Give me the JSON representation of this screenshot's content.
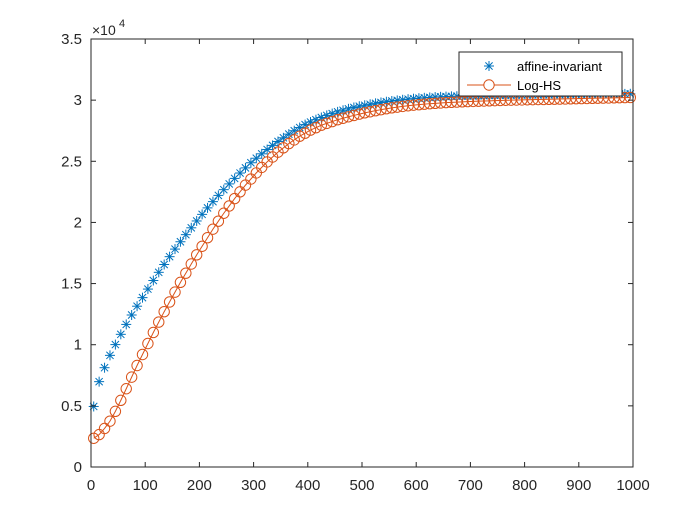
{
  "chart_data": {
    "type": "scatter",
    "title": "",
    "xlabel": "",
    "ylabel": "",
    "xlim": [
      0,
      1000
    ],
    "ylim": [
      0,
      35000
    ],
    "x_ticks": [
      0,
      100,
      200,
      300,
      400,
      500,
      600,
      700,
      800,
      900,
      1000
    ],
    "y_ticks": [
      0,
      5000,
      10000,
      15000,
      20000,
      25000,
      30000,
      35000
    ],
    "x_tick_labels": [
      "0",
      "100",
      "200",
      "300",
      "400",
      "500",
      "600",
      "700",
      "800",
      "900",
      "1000"
    ],
    "y_tick_labels": [
      "0",
      "0.5",
      "1",
      "1.5",
      "2",
      "2.5",
      "3",
      "3.5"
    ],
    "y_exponent_label": "×10",
    "y_exponent_power": "4",
    "grid": false,
    "legend_position": "top-right",
    "colors": {
      "axis": "#262626",
      "affine": "#0072BD",
      "loghs": "#D95319"
    },
    "series": [
      {
        "name": "affine-invariant",
        "marker": "asterisk",
        "x": [
          5,
          15,
          25,
          35,
          45,
          55,
          65,
          75,
          85,
          95,
          105,
          115,
          125,
          135,
          145,
          155,
          165,
          175,
          185,
          195,
          205,
          215,
          225,
          235,
          245,
          255,
          265,
          275,
          285,
          295,
          305,
          315,
          325,
          335,
          345,
          355,
          365,
          375,
          385,
          395,
          405,
          415,
          425,
          435,
          445,
          455,
          465,
          475,
          485,
          495,
          505,
          515,
          525,
          535,
          545,
          555,
          565,
          575,
          585,
          595,
          605,
          615,
          625,
          635,
          645,
          655,
          665,
          675,
          685,
          695,
          705,
          715,
          725,
          735,
          745,
          755,
          765,
          775,
          785,
          795,
          805,
          815,
          825,
          835,
          845,
          855,
          865,
          875,
          885,
          895,
          905,
          915,
          925,
          935,
          945,
          955,
          965,
          975,
          985,
          995
        ],
        "y": [
          4950,
          6980,
          8120,
          9130,
          10010,
          10850,
          11660,
          12430,
          13150,
          13850,
          14550,
          15250,
          15920,
          16560,
          17200,
          17820,
          18420,
          19000,
          19560,
          20120,
          20660,
          21190,
          21700,
          22210,
          22680,
          23150,
          23600,
          24040,
          24460,
          24880,
          25250,
          25610,
          25960,
          26300,
          26620,
          26920,
          27220,
          27500,
          27760,
          28000,
          28210,
          28400,
          28580,
          28750,
          28900,
          29040,
          29170,
          29290,
          29400,
          29500,
          29580,
          29660,
          29740,
          29810,
          29870,
          29930,
          29980,
          30030,
          30080,
          30120,
          30160,
          30190,
          30220,
          30250,
          30270,
          30290,
          30310,
          30320,
          30330,
          30340,
          30350,
          30360,
          30370,
          30380,
          30390,
          30395,
          30400,
          30405,
          30410,
          30415,
          30420,
          30425,
          30430,
          30435,
          30440,
          30445,
          30450,
          30455,
          30460,
          30465,
          30470,
          30475,
          30480,
          30485,
          30490,
          30495,
          30500,
          30505,
          30510,
          30520
        ]
      },
      {
        "name": "Log-HS",
        "marker": "circle-line",
        "x": [
          5,
          15,
          25,
          35,
          45,
          55,
          65,
          75,
          85,
          95,
          105,
          115,
          125,
          135,
          145,
          155,
          165,
          175,
          185,
          195,
          205,
          215,
          225,
          235,
          245,
          255,
          265,
          275,
          285,
          295,
          305,
          315,
          325,
          335,
          345,
          355,
          365,
          375,
          385,
          395,
          405,
          415,
          425,
          435,
          445,
          455,
          465,
          475,
          485,
          495,
          505,
          515,
          525,
          535,
          545,
          555,
          565,
          575,
          585,
          595,
          605,
          615,
          625,
          635,
          645,
          655,
          665,
          675,
          685,
          695,
          705,
          715,
          725,
          735,
          745,
          755,
          765,
          775,
          785,
          795,
          805,
          815,
          825,
          835,
          845,
          855,
          865,
          875,
          885,
          895,
          905,
          915,
          925,
          935,
          945,
          955,
          965,
          975,
          985,
          995
        ],
        "y": [
          2350,
          2650,
          3150,
          3750,
          4550,
          5450,
          6400,
          7350,
          8300,
          9200,
          10100,
          11000,
          11850,
          12700,
          13500,
          14300,
          15100,
          15850,
          16600,
          17350,
          18050,
          18750,
          19450,
          20100,
          20750,
          21350,
          21950,
          22500,
          23050,
          23550,
          24050,
          24500,
          24950,
          25350,
          25750,
          26100,
          26450,
          26750,
          27050,
          27300,
          27550,
          27750,
          27950,
          28100,
          28250,
          28400,
          28520,
          28640,
          28750,
          28860,
          28960,
          29050,
          29140,
          29220,
          29300,
          29370,
          29430,
          29490,
          29540,
          29590,
          29630,
          29670,
          29710,
          29740,
          29770,
          29800,
          29820,
          29840,
          29860,
          29880,
          29900,
          29915,
          29930,
          29945,
          29960,
          29975,
          29990,
          30000,
          30010,
          30020,
          30030,
          30040,
          30050,
          30060,
          30070,
          30080,
          30090,
          30100,
          30110,
          30120,
          30130,
          30140,
          30150,
          30160,
          30170,
          30180,
          30190,
          30200,
          30210,
          30220
        ]
      }
    ]
  }
}
